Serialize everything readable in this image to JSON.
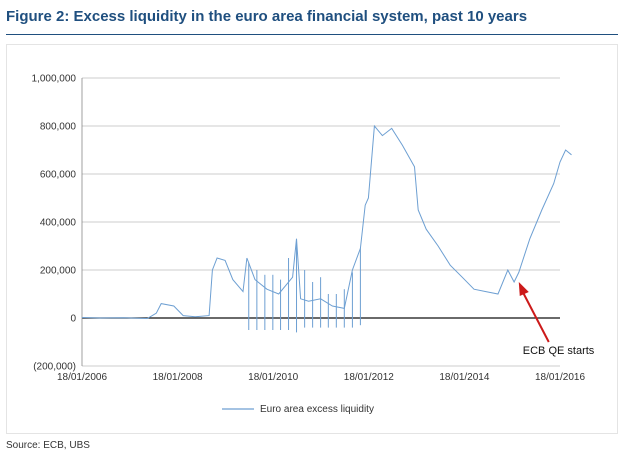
{
  "title": "Figure 2: Excess liquidity in the euro area financial system, past 10 years",
  "source": "Source:  ECB, UBS",
  "colors": {
    "title": "#1f4f7f",
    "series": "#6d9fd2",
    "arrow": "#cc1a1a",
    "grid": "#999999"
  },
  "chart_data": {
    "type": "line",
    "title": "",
    "xlabel": "",
    "ylabel": "",
    "x_ticks": [
      "18/01/2006",
      "18/01/2008",
      "18/01/2010",
      "18/01/2012",
      "18/01/2014",
      "18/01/2016"
    ],
    "y_ticks": [
      "1,000,000",
      "800,000",
      "600,000",
      "400,000",
      "200,000",
      "0",
      "(200,000)"
    ],
    "y_tick_values": [
      1000000,
      800000,
      600000,
      400000,
      200000,
      0,
      -200000
    ],
    "xlim": [
      "2006-01-18",
      "2016-01-18"
    ],
    "ylim": [
      -200000,
      1000000
    ],
    "grid": "horizontal",
    "legend_position": "bottom",
    "series": [
      {
        "name": "Euro area excess liquidity",
        "points": [
          [
            "2006-01-18",
            2000
          ],
          [
            "2006-06-01",
            0
          ],
          [
            "2006-12-01",
            1000
          ],
          [
            "2007-06-01",
            -2000
          ],
          [
            "2007-08-09",
            20000
          ],
          [
            "2007-09-15",
            60000
          ],
          [
            "2007-12-20",
            50000
          ],
          [
            "2008-03-01",
            10000
          ],
          [
            "2008-06-01",
            5000
          ],
          [
            "2008-09-15",
            10000
          ],
          [
            "2008-10-10",
            200000
          ],
          [
            "2008-11-15",
            250000
          ],
          [
            "2009-01-15",
            240000
          ],
          [
            "2009-03-15",
            160000
          ],
          [
            "2009-06-01",
            110000
          ],
          [
            "2009-07-01",
            250000
          ],
          [
            "2009-09-01",
            160000
          ],
          [
            "2009-12-01",
            120000
          ],
          [
            "2010-03-01",
            100000
          ],
          [
            "2010-06-15",
            170000
          ],
          [
            "2010-07-15",
            330000
          ],
          [
            "2010-08-15",
            80000
          ],
          [
            "2010-10-15",
            70000
          ],
          [
            "2011-01-15",
            80000
          ],
          [
            "2011-04-15",
            50000
          ],
          [
            "2011-07-15",
            40000
          ],
          [
            "2011-09-15",
            200000
          ],
          [
            "2011-11-15",
            290000
          ],
          [
            "2011-12-22",
            470000
          ],
          [
            "2012-01-15",
            500000
          ],
          [
            "2012-03-01",
            800000
          ],
          [
            "2012-05-01",
            760000
          ],
          [
            "2012-07-11",
            790000
          ],
          [
            "2012-10-01",
            720000
          ],
          [
            "2013-01-01",
            630000
          ],
          [
            "2013-01-30",
            450000
          ],
          [
            "2013-04-01",
            370000
          ],
          [
            "2013-07-01",
            300000
          ],
          [
            "2013-10-01",
            220000
          ],
          [
            "2014-01-01",
            170000
          ],
          [
            "2014-04-01",
            120000
          ],
          [
            "2014-07-01",
            110000
          ],
          [
            "2014-10-01",
            100000
          ],
          [
            "2014-12-15",
            200000
          ],
          [
            "2015-02-01",
            150000
          ],
          [
            "2015-03-09",
            190000
          ],
          [
            "2015-06-01",
            330000
          ],
          [
            "2015-09-01",
            450000
          ],
          [
            "2015-12-01",
            560000
          ],
          [
            "2016-01-18",
            650000
          ],
          [
            "2016-03-01",
            700000
          ],
          [
            "2016-04-15",
            680000
          ]
        ],
        "spikes": [
          [
            "2009-07-15",
            -50000,
            230000
          ],
          [
            "2009-09-15",
            -50000,
            200000
          ],
          [
            "2009-11-15",
            -50000,
            180000
          ],
          [
            "2010-01-15",
            -50000,
            180000
          ],
          [
            "2010-03-15",
            -50000,
            160000
          ],
          [
            "2010-05-15",
            -50000,
            250000
          ],
          [
            "2010-07-15",
            -60000,
            330000
          ],
          [
            "2010-09-15",
            -40000,
            200000
          ],
          [
            "2010-11-15",
            -40000,
            150000
          ],
          [
            "2011-01-15",
            -40000,
            170000
          ],
          [
            "2011-03-15",
            -40000,
            100000
          ],
          [
            "2011-05-15",
            -40000,
            100000
          ],
          [
            "2011-07-15",
            -40000,
            120000
          ],
          [
            "2011-09-15",
            -40000,
            190000
          ],
          [
            "2011-11-15",
            -30000,
            290000
          ]
        ]
      }
    ],
    "annotations": [
      {
        "text": "ECB QE starts",
        "x": "2015-03-09",
        "y": 150000
      }
    ]
  }
}
